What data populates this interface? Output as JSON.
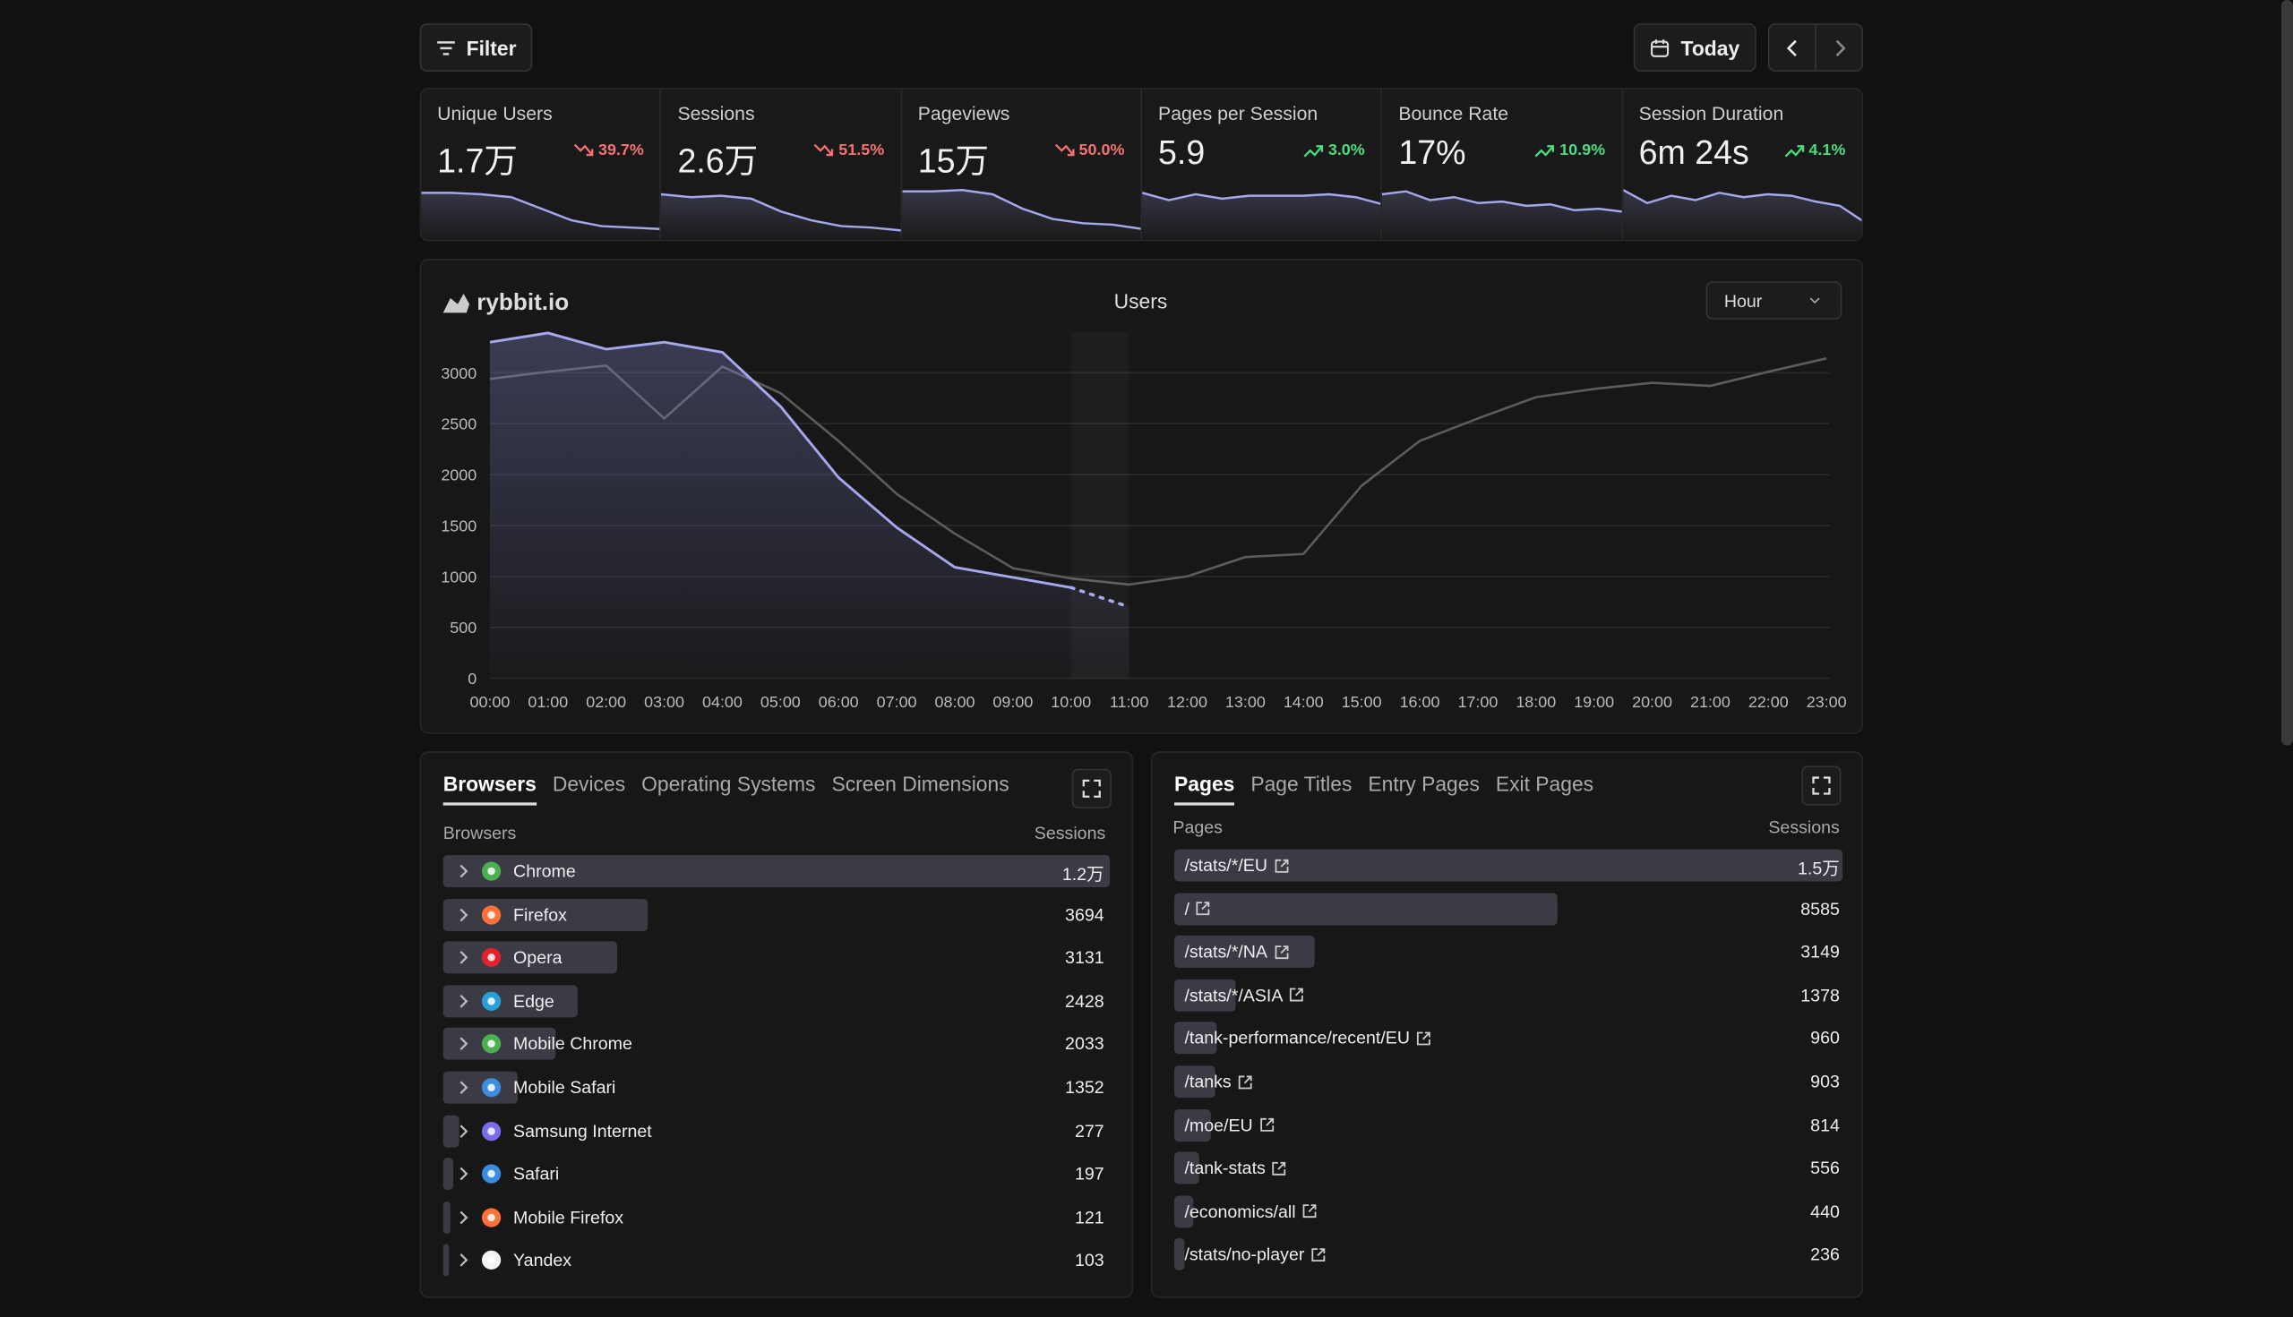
{
  "toolbar": {
    "filter": "Filter",
    "date": "Today"
  },
  "metrics": [
    {
      "label": "Unique Users",
      "value": "1.7万",
      "change": "39.7%",
      "trend": "down",
      "sparkline": [
        79,
        79,
        76,
        70,
        46,
        22,
        10,
        7,
        4
      ]
    },
    {
      "label": "Sessions",
      "value": "2.6万",
      "change": "51.5%",
      "trend": "down",
      "sparkline": [
        76,
        70,
        73,
        67,
        40,
        22,
        10,
        7,
        1
      ]
    },
    {
      "label": "Pageviews",
      "value": "15万",
      "change": "50.0%",
      "trend": "down",
      "sparkline": [
        82,
        82,
        85,
        76,
        46,
        25,
        16,
        13,
        4
      ]
    },
    {
      "label": "Pages per Session",
      "value": "5.9",
      "change": "3.0%",
      "trend": "up",
      "sparkline": [
        79,
        64,
        76,
        67,
        73,
        73,
        73,
        76,
        70,
        55
      ]
    },
    {
      "label": "Bounce Rate",
      "value": "17%",
      "change": "10.9%",
      "trend": "up",
      "sparkline": [
        76,
        82,
        64,
        70,
        58,
        61,
        52,
        55,
        43,
        46,
        40
      ]
    },
    {
      "label": "Session Duration",
      "value": "6m 24s",
      "change": "4.1%",
      "trend": "up",
      "sparkline": [
        85,
        58,
        73,
        64,
        79,
        70,
        76,
        73,
        61,
        52,
        19
      ]
    }
  ],
  "chart_data": {
    "type": "line",
    "brand": "rybbit.io",
    "title": "Users",
    "interval": "Hour",
    "categories": [
      "00:00",
      "01:00",
      "02:00",
      "03:00",
      "04:00",
      "05:00",
      "06:00",
      "07:00",
      "08:00",
      "09:00",
      "10:00",
      "11:00",
      "12:00",
      "13:00",
      "14:00",
      "15:00",
      "16:00",
      "17:00",
      "18:00",
      "19:00",
      "20:00",
      "21:00",
      "22:00",
      "23:00"
    ],
    "series": [
      {
        "color": "#a5a8ec",
        "values": [
          3300,
          3390,
          3230,
          3300,
          3200,
          2670,
          1970,
          1480,
          1090,
          990,
          890,
          700,
          null,
          null,
          null,
          null,
          null,
          null,
          null,
          null,
          null,
          null,
          null,
          null
        ]
      },
      {
        "color": "#5c5c5c",
        "values": [
          2940,
          3010,
          3070,
          2550,
          3060,
          2800,
          2330,
          1810,
          1420,
          1080,
          980,
          920,
          1000,
          1190,
          1220,
          1890,
          2330,
          2550,
          2760,
          2840,
          2900,
          2870,
          3010,
          3140
        ]
      }
    ],
    "ylim": [
      0,
      3400
    ],
    "yticks": [
      0,
      500,
      1000,
      1500,
      2000,
      2500,
      3000
    ],
    "grid": true
  },
  "browsers": {
    "tabs": [
      "Browsers",
      "Devices",
      "Operating Systems",
      "Screen Dimensions"
    ],
    "column": "Browsers",
    "metric": "Sessions",
    "rows": [
      {
        "name": "Chrome",
        "value": 12000,
        "value_label": "1.2万",
        "icon_color": "#4caf50"
      },
      {
        "name": "Firefox",
        "value": 3694,
        "icon_color": "#ff7139"
      },
      {
        "name": "Opera",
        "value": 3131,
        "icon_color": "#e3202c"
      },
      {
        "name": "Edge",
        "value": 2428,
        "icon_color": "#2aa0d8"
      },
      {
        "name": "Mobile Chrome",
        "value": 2033,
        "icon_color": "#4caf50"
      },
      {
        "name": "Mobile Safari",
        "value": 1352,
        "icon_color": "#3b8de0"
      },
      {
        "name": "Samsung Internet",
        "value": 277,
        "icon_color": "#7a6cf0"
      },
      {
        "name": "Safari",
        "value": 197,
        "icon_color": "#3b8de0"
      },
      {
        "name": "Mobile Firefox",
        "value": 121,
        "icon_color": "#ff7139"
      },
      {
        "name": "Yandex",
        "value": 103,
        "icon_color": "#f4f4f4"
      }
    ]
  },
  "pages": {
    "tabs": [
      "Pages",
      "Page Titles",
      "Entry Pages",
      "Exit Pages"
    ],
    "column": "Pages",
    "metric": "Sessions",
    "rows": [
      {
        "name": "/stats/*/EU",
        "value": 15000,
        "value_label": "1.5万"
      },
      {
        "name": "/",
        "value": 8585
      },
      {
        "name": "/stats/*/NA",
        "value": 3149
      },
      {
        "name": "/stats/*/ASIA",
        "value": 1378
      },
      {
        "name": "/tank-performance/recent/EU",
        "value": 960
      },
      {
        "name": "/tanks",
        "value": 903
      },
      {
        "name": "/moe/EU",
        "value": 814
      },
      {
        "name": "/tank-stats",
        "value": 556
      },
      {
        "name": "/economics/all",
        "value": 440
      },
      {
        "name": "/stats/no-player",
        "value": 236
      }
    ]
  }
}
